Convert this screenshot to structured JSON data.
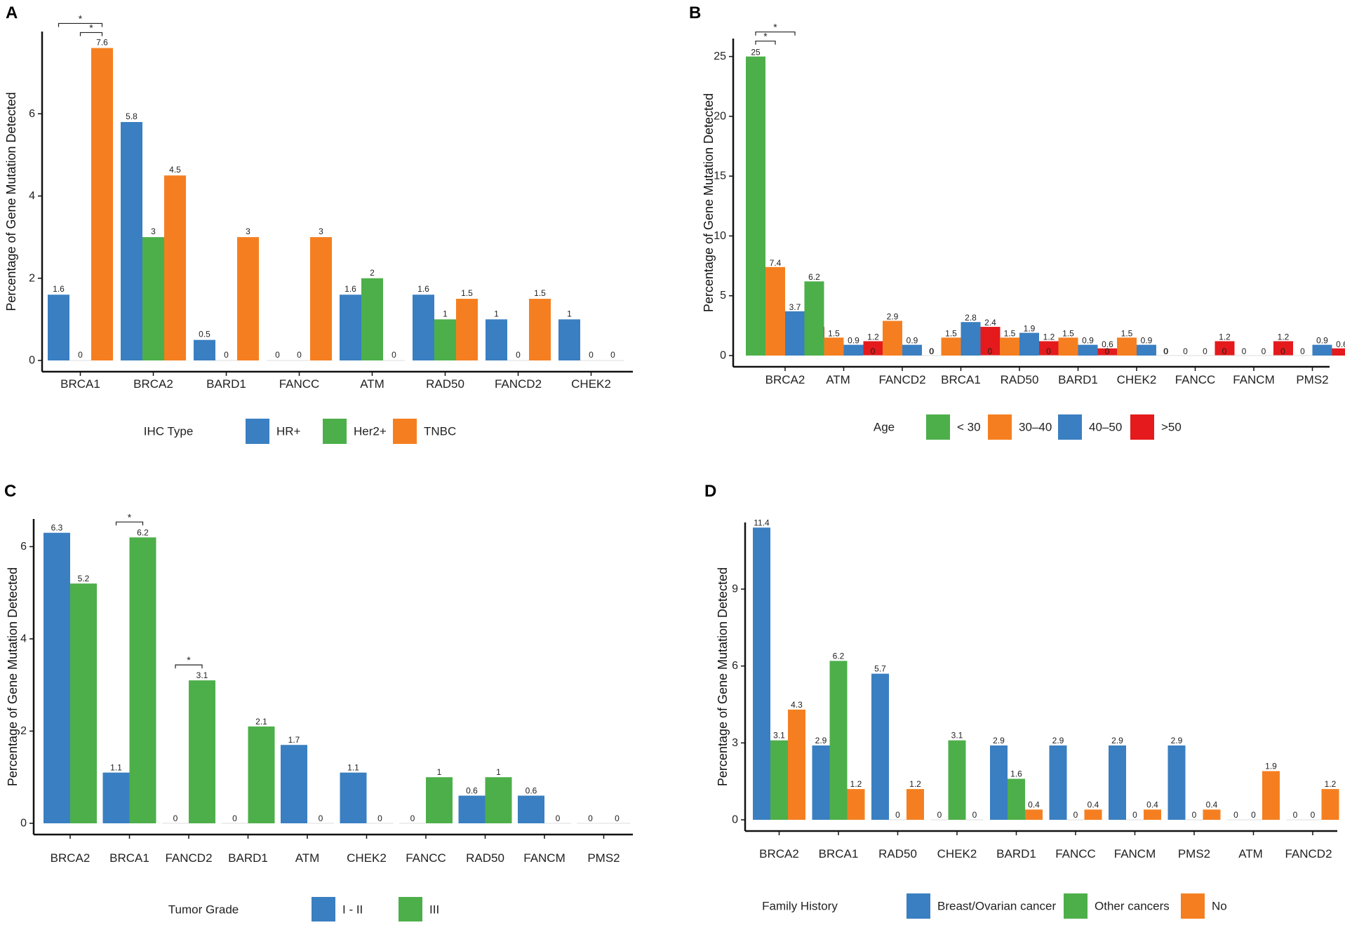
{
  "colors": {
    "blue": "#3a7fc1",
    "green": "#4daf4a",
    "orange": "#f57f20",
    "red": "#e41a1c"
  },
  "chart_data": [
    {
      "panel": "A",
      "type": "bar",
      "ylabel": "Percentage of Gene Mutation Detected",
      "ylim": [
        0,
        8
      ],
      "yticks": [
        0,
        2,
        4,
        6
      ],
      "categories": [
        "BRCA1",
        "BRCA2",
        "BARD1",
        "FANCC",
        "ATM",
        "RAD50",
        "FANCD2",
        "CHEK2"
      ],
      "legend_title": "IHC Type",
      "series": [
        {
          "name": "HR+",
          "color": "#3a7fc1",
          "values": [
            1.6,
            5.8,
            0.5,
            0,
            1.6,
            1.6,
            1,
            1
          ]
        },
        {
          "name": "Her2+",
          "color": "#4daf4a",
          "values": [
            0,
            3,
            0,
            0,
            2,
            1,
            0,
            0
          ]
        },
        {
          "name": "TNBC",
          "color": "#f57f20",
          "values": [
            7.6,
            4.5,
            3,
            3,
            0,
            1.5,
            1.5,
            0
          ]
        }
      ],
      "significance": [
        {
          "category": 0,
          "from": 0,
          "to": 2,
          "label": "*",
          "level": 2
        },
        {
          "category": 0,
          "from": 1,
          "to": 2,
          "label": "*",
          "level": 1
        }
      ]
    },
    {
      "panel": "B",
      "type": "bar",
      "ylabel": "Percentage of Gene Mutation Detected",
      "ylim": [
        0,
        26.5
      ],
      "yticks": [
        0,
        5,
        10,
        15,
        20,
        25
      ],
      "categories": [
        "BRCA2",
        "ATM",
        "FANCD2",
        "BRCA1",
        "RAD50",
        "BARD1",
        "CHEK2",
        "FANCC",
        "FANCM",
        "PMS2"
      ],
      "legend_title": "Age",
      "series": [
        {
          "name": "< 30",
          "color": "#4daf4a",
          "values": [
            25,
            6.2,
            0,
            0,
            0,
            0,
            0,
            0,
            0,
            0
          ]
        },
        {
          "name": "30–40",
          "color": "#f57f20",
          "values": [
            7.4,
            1.5,
            2.9,
            1.5,
            1.5,
            1.5,
            1.5,
            0,
            0,
            0
          ]
        },
        {
          "name": "40–50",
          "color": "#3a7fc1",
          "values": [
            3.7,
            0.9,
            0.9,
            2.8,
            1.9,
            0.9,
            0.9,
            0,
            0,
            0.9
          ]
        },
        {
          "name": ">50",
          "color": "#e41a1c",
          "values": [
            2.4,
            1.2,
            0,
            2.4,
            1.2,
            0.6,
            0,
            1.2,
            1.2,
            0.6
          ]
        }
      ],
      "significance": [
        {
          "category": 0,
          "from": 0,
          "to": 2,
          "label": "*",
          "level": 2
        },
        {
          "category": 0,
          "from": 0,
          "to": 1,
          "label": "*",
          "level": 1
        }
      ]
    },
    {
      "panel": "C",
      "type": "bar",
      "ylabel": "Percentage of Gene Mutation Detected",
      "ylim": [
        0,
        6.6
      ],
      "yticks": [
        0,
        2,
        4,
        6
      ],
      "categories": [
        "BRCA2",
        "BRCA1",
        "FANCD2",
        "BARD1",
        "ATM",
        "CHEK2",
        "FANCC",
        "RAD50",
        "FANCM",
        "PMS2"
      ],
      "legend_title": "Tumor Grade",
      "series": [
        {
          "name": "I - II",
          "color": "#3a7fc1",
          "values": [
            6.3,
            1.1,
            0,
            0,
            1.7,
            1.1,
            0,
            0.6,
            0.6,
            0
          ]
        },
        {
          "name": "III",
          "color": "#4daf4a",
          "values": [
            5.2,
            6.2,
            3.1,
            2.1,
            0,
            0,
            1,
            1,
            0,
            0
          ]
        }
      ],
      "significance": [
        {
          "category": 1,
          "from": 0,
          "to": 1,
          "label": "*",
          "level": 1
        },
        {
          "category": 2,
          "from": 0,
          "to": 1,
          "label": "*",
          "level": 1
        }
      ]
    },
    {
      "panel": "D",
      "type": "bar",
      "ylabel": "Percentage of Gene Mutation Detected",
      "ylim": [
        0,
        11.6
      ],
      "yticks": [
        0,
        3,
        6,
        9
      ],
      "categories": [
        "BRCA2",
        "BRCA1",
        "RAD50",
        "CHEK2",
        "BARD1",
        "FANCC",
        "FANCM",
        "PMS2",
        "ATM",
        "FANCD2"
      ],
      "legend_title": "Family History",
      "series": [
        {
          "name": "Breast/Ovarian cancer",
          "color": "#3a7fc1",
          "values": [
            11.4,
            2.9,
            5.7,
            0,
            2.9,
            2.9,
            2.9,
            2.9,
            0,
            0
          ]
        },
        {
          "name": "Other cancers",
          "color": "#4daf4a",
          "values": [
            3.1,
            6.2,
            0,
            3.1,
            1.6,
            0,
            0,
            0,
            0,
            0
          ]
        },
        {
          "name": "No",
          "color": "#f57f20",
          "values": [
            4.3,
            1.2,
            1.2,
            0,
            0.4,
            0.4,
            0.4,
            0.4,
            1.9,
            1.2
          ]
        }
      ],
      "significance": []
    }
  ]
}
